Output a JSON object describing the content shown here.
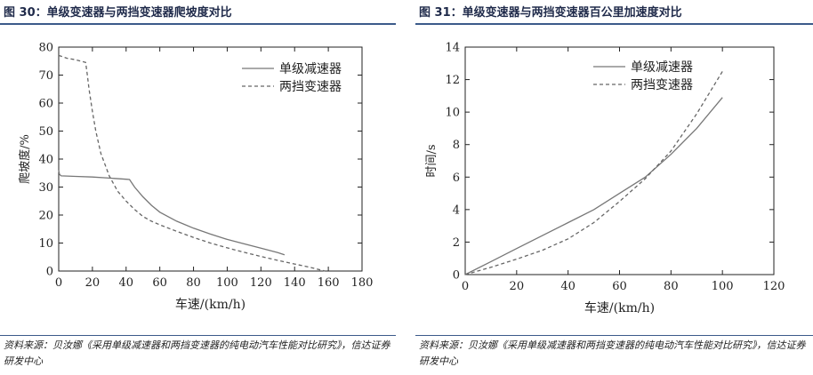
{
  "panels": [
    {
      "title": "图 30：单级变速器与两挡变速器爬坡度对比",
      "source": "资料来源：贝汝娜《采用单级减速器和两挡变速器的纯电动汽车性能对比研究》，信达证券研发中心"
    },
    {
      "title": "图 31：单级变速器与两挡变速器百公里加速度对比",
      "source": "资料来源：贝汝娜《采用单级减速器和两挡变速器的纯电动汽车性能对比研究》，信达证券研发中心"
    }
  ],
  "chart_data": [
    {
      "type": "line",
      "title": "单级变速器与两挡变速器爬坡度对比",
      "xlabel": "车速/(km/h)",
      "ylabel": "爬坡度/%",
      "xlim": [
        0,
        180
      ],
      "ylim": [
        0,
        80
      ],
      "xticks": [
        0,
        20,
        40,
        60,
        80,
        100,
        120,
        140,
        160,
        180
      ],
      "yticks": [
        0,
        10,
        20,
        30,
        40,
        50,
        60,
        70,
        80
      ],
      "legend": "top-right",
      "series": [
        {
          "name": "单级减速器",
          "style": "solid",
          "x": [
            0,
            0.5,
            1.5,
            10,
            20,
            30,
            40,
            42,
            45,
            50,
            55,
            60,
            70,
            80,
            90,
            100,
            110,
            120,
            130,
            134
          ],
          "y": [
            36,
            34.5,
            34,
            33.8,
            33.6,
            33.2,
            32.8,
            32.7,
            30,
            26.5,
            23.5,
            21,
            17.8,
            15.3,
            13.2,
            11.3,
            9.7,
            8.2,
            6.6,
            5.8
          ]
        },
        {
          "name": "两挡变速器",
          "style": "dashed",
          "x": [
            0,
            5,
            10,
            16,
            17,
            18,
            20,
            22,
            25,
            30,
            35,
            40,
            45,
            50,
            55,
            60,
            70,
            80,
            90,
            100,
            110,
            120,
            130,
            140,
            150,
            158
          ],
          "y": [
            77,
            76,
            75.5,
            74.5,
            70,
            65,
            57,
            50,
            42,
            34,
            28.5,
            25,
            22,
            19.5,
            17.8,
            16.5,
            14.2,
            12,
            10,
            8.3,
            6.7,
            5.2,
            3.8,
            2.5,
            1.2,
            0
          ]
        }
      ]
    },
    {
      "type": "line",
      "title": "单级变速器与两挡变速器百公里加速度对比",
      "xlabel": "车速/(km/h)",
      "ylabel": "时间/s",
      "xlim": [
        0,
        120
      ],
      "ylim": [
        0,
        14
      ],
      "xticks": [
        0,
        20,
        40,
        60,
        80,
        100,
        120
      ],
      "yticks": [
        0,
        2,
        4,
        6,
        8,
        10,
        12,
        14
      ],
      "legend": "top-right",
      "series": [
        {
          "name": "单级减速器",
          "style": "solid",
          "x": [
            0,
            10,
            20,
            30,
            40,
            50,
            60,
            70,
            80,
            90,
            100
          ],
          "y": [
            0,
            0.8,
            1.6,
            2.4,
            3.2,
            4.0,
            5.0,
            6.0,
            7.4,
            9.0,
            10.9
          ]
        },
        {
          "name": "两挡变速器",
          "style": "dashed",
          "x": [
            0,
            10,
            20,
            30,
            40,
            50,
            60,
            70,
            80,
            90,
            100
          ],
          "y": [
            0,
            0.45,
            0.95,
            1.5,
            2.2,
            3.2,
            4.5,
            5.9,
            7.6,
            9.9,
            12.5
          ]
        }
      ]
    }
  ]
}
